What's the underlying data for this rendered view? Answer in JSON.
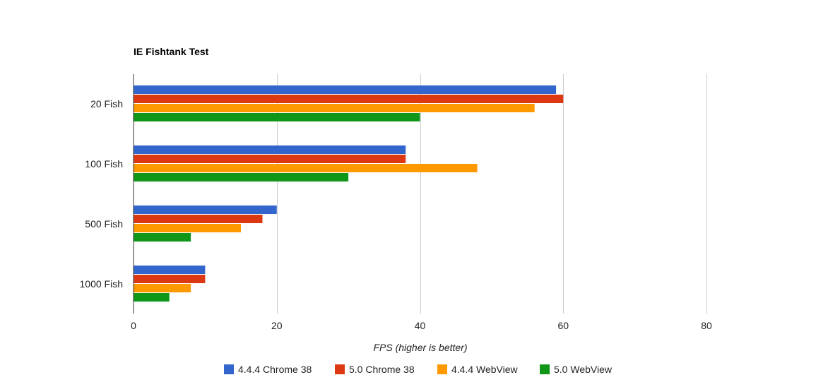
{
  "chart_data": {
    "type": "bar",
    "orientation": "horizontal",
    "title": "IE Fishtank Test",
    "xlabel": "FPS (higher is better)",
    "ylabel": "",
    "categories": [
      "20 Fish",
      "100 Fish",
      "500 Fish",
      "1000 Fish"
    ],
    "series": [
      {
        "name": "4.4.4 Chrome 38",
        "color": "#3366cc",
        "values": [
          59,
          38,
          20,
          10
        ]
      },
      {
        "name": "5.0 Chrome 38",
        "color": "#dc3912",
        "values": [
          60,
          38,
          18,
          10
        ]
      },
      {
        "name": "4.4.4 WebView",
        "color": "#ff9900",
        "values": [
          56,
          48,
          15,
          8
        ]
      },
      {
        "name": "5.0 WebView",
        "color": "#109618",
        "values": [
          40,
          30,
          8,
          5
        ]
      }
    ],
    "xlim": [
      0,
      80
    ],
    "x_ticks": [
      0,
      20,
      40,
      60,
      80
    ],
    "grid": true,
    "legend": "bottom"
  }
}
